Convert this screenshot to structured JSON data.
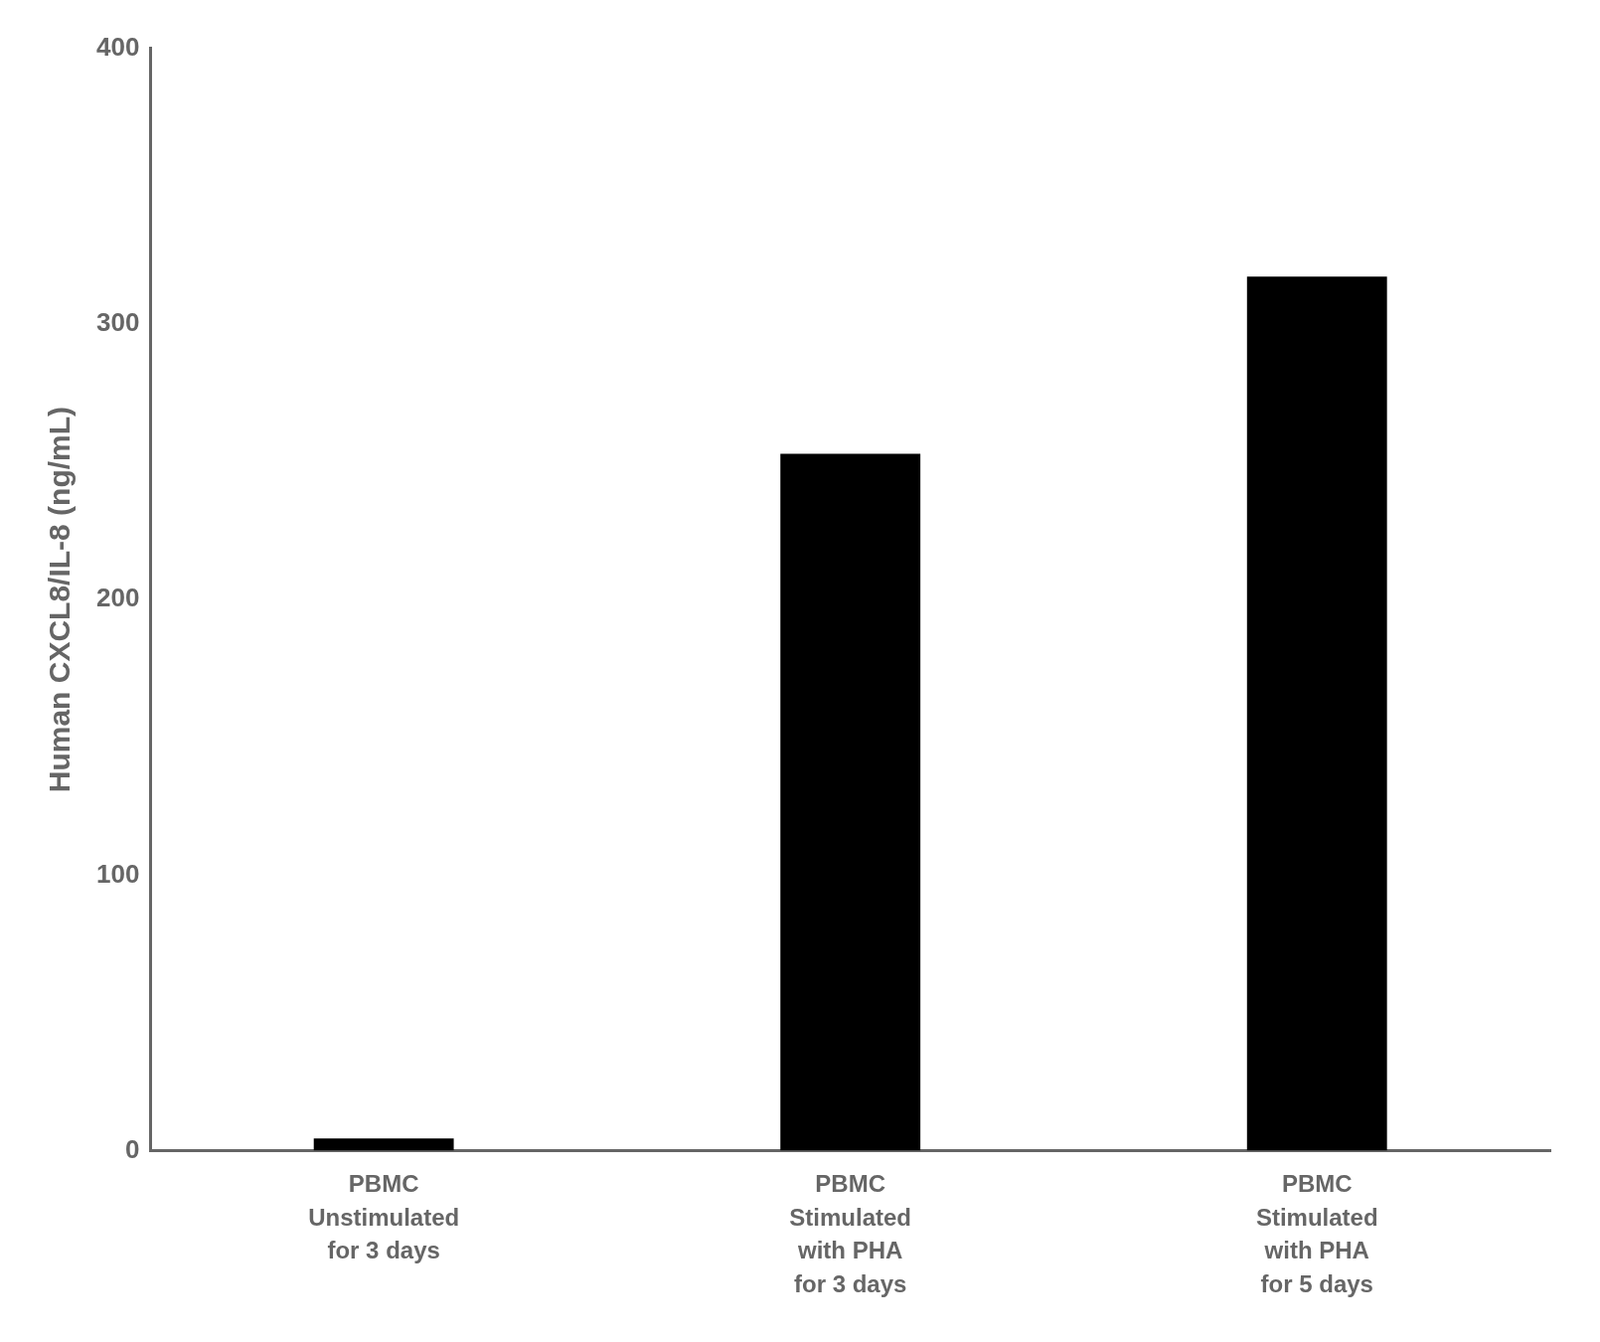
{
  "chart_data": {
    "type": "bar",
    "categories": [
      "PBMC\nUnstimulated\nfor 3 days",
      "PBMC\nStimulated\nwith PHA\nfor 3 days",
      "PBMC\nStimulated\nwith PHA\nfor 5 days"
    ],
    "values": [
      4.46,
      252.88,
      317.16
    ],
    "color": "#000000",
    "ylabel": "Human CXCL8/IL-8 (ng/mL)",
    "ylim": [
      0,
      400
    ],
    "yticks": [
      0,
      100,
      200,
      300,
      400
    ],
    "grid": false
  }
}
